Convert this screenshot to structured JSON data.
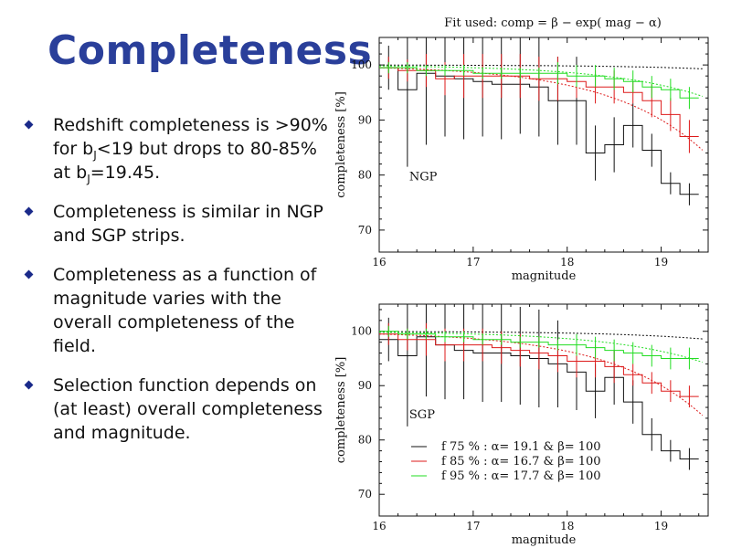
{
  "slide": {
    "title": "Completeness",
    "bullets": [
      {
        "parts": [
          {
            "t": "Redshift completeness is >90% for b"
          },
          {
            "sub": "J"
          },
          {
            "t": "<19 but drops to 80-85% at b"
          },
          {
            "sub": "J"
          },
          {
            "t": "=19.45."
          }
        ]
      },
      {
        "parts": [
          {
            "t": "Completeness is similar in NGP and SGP strips."
          }
        ]
      },
      {
        "parts": [
          {
            "t": "Completeness as a function of magnitude varies with the overall completeness of the field."
          }
        ]
      },
      {
        "parts": [
          {
            "t": "Selection function depends on (at least) overall completeness and magnitude."
          }
        ]
      }
    ]
  },
  "colors": {
    "black": "#111111",
    "red": "#dd1a1a",
    "green": "#22dd22",
    "title": "#2a3f9a"
  },
  "chart_data": [
    {
      "type": "line",
      "title": "Fit used: comp = β − exp( mag − α)",
      "panel_label": "NGP",
      "xlabel": "magnitude",
      "ylabel": "completeness [%]",
      "xlim": [
        16,
        19.5
      ],
      "ylim": [
        66,
        105
      ],
      "xticks": [
        "16",
        "17",
        "18",
        "19"
      ],
      "yticks": [
        "70",
        "80",
        "90",
        "100"
      ],
      "series": [
        {
          "color": "black",
          "x": [
            16.1,
            16.3,
            16.5,
            16.7,
            16.9,
            17.1,
            17.3,
            17.5,
            17.7,
            17.9,
            18.1,
            18.3,
            18.5,
            18.7,
            18.9,
            19.1,
            19.3
          ],
          "y": [
            99.5,
            95.5,
            98.5,
            98,
            97.5,
            97,
            96.5,
            96.5,
            96,
            93.5,
            93.5,
            84,
            85.5,
            89,
            84.5,
            78.5,
            76.5
          ],
          "err": [
            4,
            14,
            13,
            11,
            11,
            10,
            10,
            9,
            9,
            8,
            8,
            5,
            5,
            4,
            3,
            2,
            2
          ],
          "fit": {
            "alpha": 19.8,
            "beta": 100
          }
        },
        {
          "color": "red",
          "x": [
            16.1,
            16.3,
            16.5,
            16.7,
            16.9,
            17.1,
            17.3,
            17.5,
            17.7,
            17.9,
            18.1,
            18.3,
            18.5,
            18.7,
            18.9,
            19.1,
            19.3
          ],
          "y": [
            99.5,
            99,
            99,
            97.5,
            98,
            98,
            98,
            98,
            97.5,
            97.5,
            97,
            96,
            96,
            95,
            93.5,
            91,
            87
          ],
          "err": [
            2,
            2,
            3,
            3,
            4,
            4,
            4,
            4,
            4,
            4,
            3,
            3,
            3,
            2,
            3,
            3,
            3
          ],
          "fit": {
            "alpha": 16.7,
            "beta": 100
          }
        },
        {
          "color": "green",
          "x": [
            16.1,
            16.3,
            16.5,
            16.7,
            16.9,
            17.1,
            17.3,
            17.5,
            17.7,
            17.9,
            18.1,
            18.3,
            18.5,
            18.7,
            18.9,
            19.1,
            19.3
          ],
          "y": [
            99.5,
            99.5,
            99,
            99,
            99,
            98.5,
            98.5,
            98.5,
            98.5,
            98.5,
            98,
            98,
            97.5,
            97,
            96,
            95.5,
            94
          ],
          "err": [
            1,
            1,
            1,
            1,
            1,
            1,
            1,
            1,
            1,
            2,
            2,
            2,
            2,
            2,
            2,
            2,
            2
          ],
          "fit": {
            "alpha": 17.7,
            "beta": 100
          }
        }
      ]
    },
    {
      "type": "line",
      "panel_label": "SGP",
      "xlabel": "magnitude",
      "ylabel": "completeness [%]",
      "xlim": [
        16,
        19.5
      ],
      "ylim": [
        66,
        105
      ],
      "xticks": [
        "16",
        "17",
        "18",
        "19"
      ],
      "yticks": [
        "70",
        "80",
        "90",
        "100"
      ],
      "legend": [
        {
          "color": "black",
          "text": "f 75 % : α= 19.1 & β= 100"
        },
        {
          "color": "red",
          "text": "f 85 % : α= 16.7 & β= 100"
        },
        {
          "color": "green",
          "text": "f 95 % : α= 17.7 & β= 100"
        }
      ],
      "series": [
        {
          "color": "black",
          "x": [
            16.1,
            16.3,
            16.5,
            16.7,
            16.9,
            17.1,
            17.3,
            17.5,
            17.7,
            17.9,
            18.1,
            18.3,
            18.5,
            18.7,
            18.9,
            19.1,
            19.3
          ],
          "y": [
            98.5,
            95.5,
            99,
            97.5,
            96.5,
            96,
            96,
            95.5,
            95,
            94,
            92.5,
            89,
            91.5,
            87,
            81,
            78,
            76.5
          ],
          "err": [
            4,
            13,
            11,
            10,
            9,
            9,
            9,
            9,
            9,
            8,
            7,
            5,
            5,
            4,
            3,
            2,
            2
          ],
          "fit": {
            "alpha": 19.1,
            "beta": 100
          }
        },
        {
          "color": "red",
          "x": [
            16.1,
            16.3,
            16.5,
            16.7,
            16.9,
            17.1,
            17.3,
            17.5,
            17.7,
            17.9,
            18.1,
            18.3,
            18.5,
            18.7,
            18.9,
            19.1,
            19.3
          ],
          "y": [
            99.5,
            98.5,
            98.5,
            97.5,
            97.5,
            97.5,
            97,
            96.5,
            96,
            95.5,
            94.5,
            94.5,
            93.5,
            92,
            90.5,
            89,
            88
          ],
          "err": [
            2,
            2,
            3,
            3,
            3,
            3,
            3,
            3,
            3,
            3,
            3,
            3,
            3,
            2,
            2,
            2,
            2
          ],
          "fit": {
            "alpha": 16.7,
            "beta": 100
          }
        },
        {
          "color": "green",
          "x": [
            16.1,
            16.3,
            16.5,
            16.7,
            16.9,
            17.1,
            17.3,
            17.5,
            17.7,
            17.9,
            18.1,
            18.3,
            18.5,
            18.7,
            18.9,
            19.1,
            19.3
          ],
          "y": [
            100,
            99.5,
            99.5,
            99,
            99,
            98.5,
            98.5,
            98,
            98,
            97.5,
            97.5,
            97,
            96.5,
            96,
            95.5,
            95,
            95
          ],
          "err": [
            1,
            1,
            1,
            1,
            1,
            1,
            1,
            1,
            1,
            1,
            2,
            2,
            2,
            2,
            2,
            2,
            2
          ],
          "fit": {
            "alpha": 17.7,
            "beta": 100
          }
        }
      ]
    }
  ]
}
